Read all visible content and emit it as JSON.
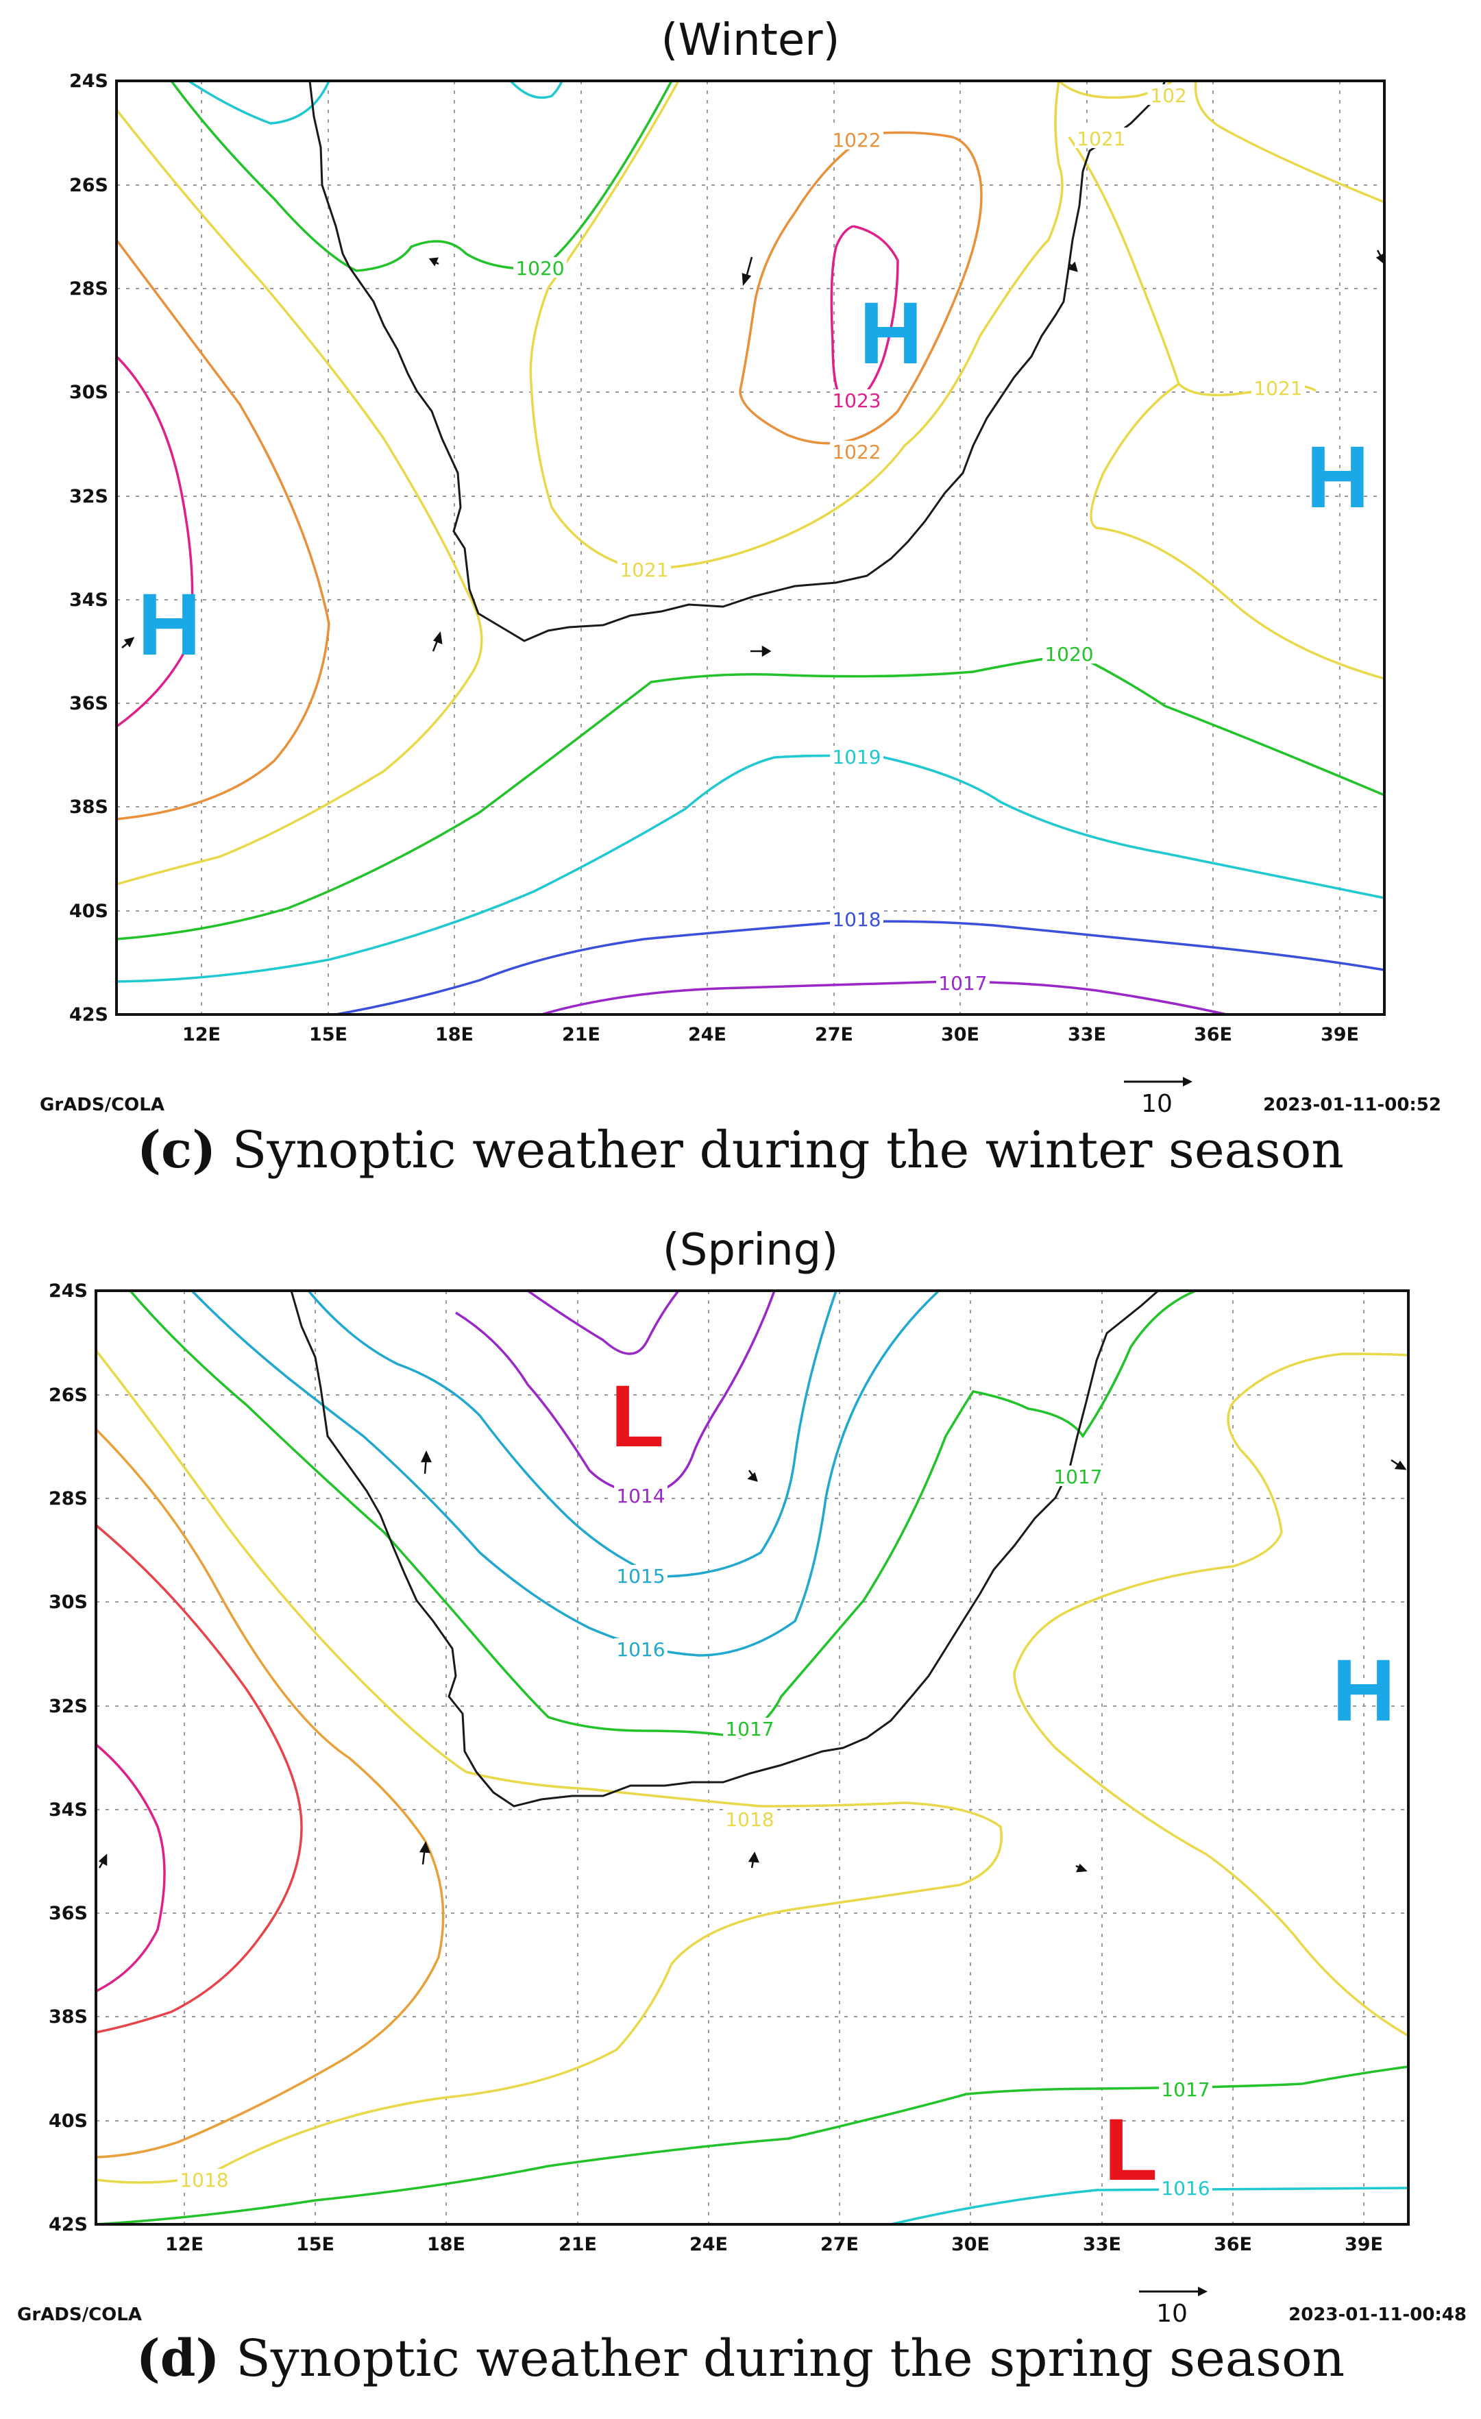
{
  "panels": [
    {
      "id": "winter",
      "title": "(Winter)",
      "x_ticks": [
        "12E",
        "15E",
        "18E",
        "21E",
        "24E",
        "27E",
        "30E",
        "33E",
        "36E",
        "39E"
      ],
      "y_ticks": [
        "24S",
        "26S",
        "28S",
        "30S",
        "32S",
        "34S",
        "36S",
        "38S",
        "40S",
        "42S"
      ],
      "contour_labels": [
        {
          "text": "1020",
          "color": "#22c32a"
        },
        {
          "text": "1022",
          "color": "#e8913a"
        },
        {
          "text": "1021",
          "color": "#e8d84a"
        },
        {
          "text": "1023",
          "color": "#e0208a"
        },
        {
          "text": "1022",
          "color": "#e8913a"
        },
        {
          "text": "1021",
          "color": "#e8d84a"
        },
        {
          "text": "1021",
          "color": "#e8d84a"
        },
        {
          "text": "1020",
          "color": "#22c32a"
        },
        {
          "text": "1019",
          "color": "#20c8cf"
        },
        {
          "text": "1018",
          "color": "#3a4fdc"
        },
        {
          "text": "1017",
          "color": "#9a28c8"
        },
        {
          "text": "102",
          "color": "#e8d84a"
        }
      ],
      "pressure_centers": [
        {
          "label": "H",
          "type": "high"
        },
        {
          "label": "H",
          "type": "high"
        },
        {
          "label": "H",
          "type": "high"
        }
      ],
      "footer_left": "GrADS/COLA",
      "scale_value": "10",
      "footer_right": "2023-01-11-00:52",
      "caption_bold": "(c)",
      "caption_text": " Synoptic weather during the winter season"
    },
    {
      "id": "spring",
      "title": "(Spring)",
      "x_ticks": [
        "12E",
        "15E",
        "18E",
        "21E",
        "24E",
        "27E",
        "30E",
        "33E",
        "36E",
        "39E"
      ],
      "y_ticks": [
        "24S",
        "26S",
        "28S",
        "30S",
        "32S",
        "34S",
        "36S",
        "38S",
        "40S",
        "42S"
      ],
      "contour_labels": [
        {
          "text": "1014",
          "color": "#9a28c8"
        },
        {
          "text": "1015",
          "color": "#20a8cf"
        },
        {
          "text": "1016",
          "color": "#20a8cf"
        },
        {
          "text": "1017",
          "color": "#22c32a"
        },
        {
          "text": "1017",
          "color": "#22c32a"
        },
        {
          "text": "1018",
          "color": "#e8d84a"
        },
        {
          "text": "1018",
          "color": "#e8d84a"
        },
        {
          "text": "1017",
          "color": "#22c32a"
        },
        {
          "text": "1016",
          "color": "#20c8cf"
        }
      ],
      "pressure_centers": [
        {
          "label": "L",
          "type": "low"
        },
        {
          "label": "H",
          "type": "high"
        },
        {
          "label": "L",
          "type": "low"
        }
      ],
      "footer_left": "GrADS/COLA",
      "scale_value": "10",
      "footer_right": "2023-01-11-00:48",
      "caption_bold": "(d)",
      "caption_text": " Synoptic weather during the spring season"
    }
  ],
  "colors": {
    "high": "#1aa9e6",
    "low": "#e8141b",
    "coast": "#1a1a1a"
  }
}
